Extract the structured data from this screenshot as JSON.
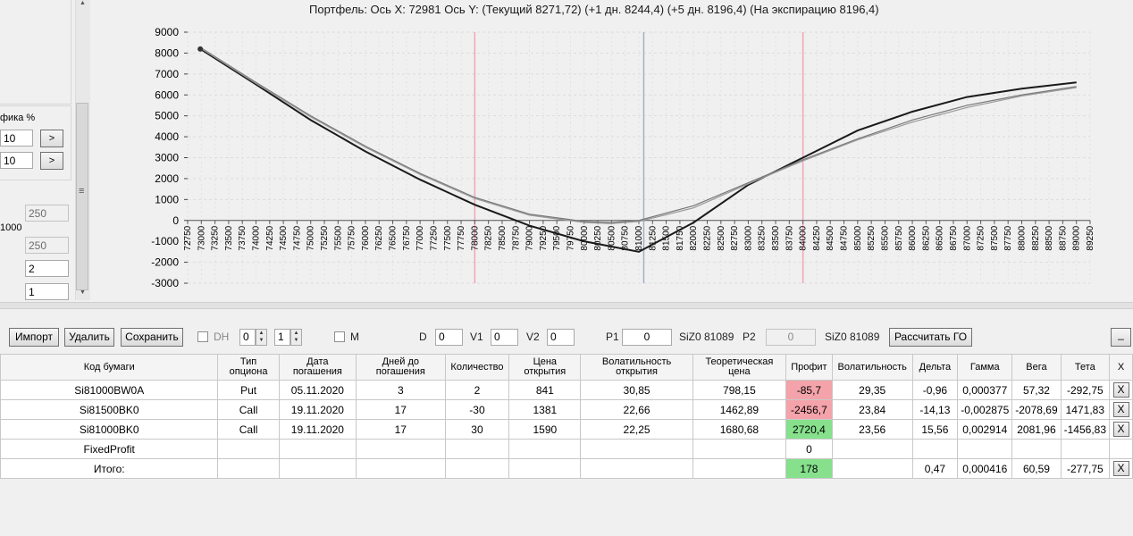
{
  "left_panel": {
    "label_percent": "фика %",
    "field1": "10",
    "field2": "10",
    "arrow": ">",
    "label_1000": "1000",
    "field_250_disabled": "250",
    "field_250": "250",
    "field_2": "2",
    "field_1": "1",
    "scroll_icon": "≡"
  },
  "chart_title": "Портфель: Ось X: 72981 Ось Y:  (Текущий 8271,72)  (+1 дн. 8244,4)  (+5 дн. 8196,4)  (На экспирацию 8196,4)",
  "toolbar": {
    "import": "Импорт",
    "delete": "Удалить",
    "save": "Сохранить",
    "dh_label": "DH",
    "spin1": "0",
    "spin2": "1",
    "m_label": "M",
    "d_label": "D",
    "d_value": "0",
    "v1_label": "V1",
    "v1_value": "0",
    "v2_label": "V2",
    "v2_value": "0",
    "p1_label": "P1",
    "p1_value": "0",
    "siz1": "SiZ0 81089",
    "p2_label": "P2",
    "p2_value": "0",
    "siz2": "SiZ0 81089",
    "calc_go": "Рассчитать ГО",
    "minimize": "_"
  },
  "table": {
    "headers": [
      "Код бумаги",
      "Тип опциона",
      "Дата погашения",
      "Дней до погашения",
      "Количество",
      "Цена открытия",
      "Волатильность открытия",
      "Теоретическая цена",
      "Профит",
      "Волатильность",
      "Дельта",
      "Гамма",
      "Вега",
      "Тета",
      "X"
    ],
    "rows": [
      [
        "Si81000BW0A",
        "Put",
        "05.11.2020",
        "3",
        "2",
        "841",
        "30,85",
        "798,15",
        "-85,7",
        "29,35",
        "-0,96",
        "0,000377",
        "57,32",
        "-292,75",
        "X"
      ],
      [
        "Si81500BK0",
        "Call",
        "19.11.2020",
        "17",
        "-30",
        "1381",
        "22,66",
        "1462,89",
        "-2456,7",
        "23,84",
        "-14,13",
        "-0,002875",
        "-2078,69",
        "1471,83",
        "X"
      ],
      [
        "Si81000BK0",
        "Call",
        "19.11.2020",
        "17",
        "30",
        "1590",
        "22,25",
        "1680,68",
        "2720,4",
        "23,56",
        "15,56",
        "0,002914",
        "2081,96",
        "-1456,83",
        "X"
      ],
      [
        "FixedProfit",
        "",
        "",
        "",
        "",
        "",
        "",
        "",
        "0",
        "",
        "",
        "",
        "",
        "",
        ""
      ],
      [
        "Итого:",
        "",
        "",
        "",
        "",
        "",
        "",
        "",
        "178",
        "",
        "0,47",
        "0,000416",
        "60,59",
        "-277,75",
        "X"
      ]
    ],
    "profit_colors": [
      "#f4a3aa",
      "#f4a3aa",
      "#86e08c",
      "#ffffff",
      "#86e08c"
    ]
  },
  "chart_data": {
    "type": "line",
    "title": "Портфель: Ось X: 72981 Ось Y:  (Текущий 8271,72)  (+1 дн. 8244,4)  (+5 дн. 8196,4)  (На экспирацию 8196,4)",
    "xlabel": "",
    "ylabel": "",
    "xlim": [
      72750,
      89250
    ],
    "ylim": [
      -3000,
      9000
    ],
    "y_ticks": [
      -3000,
      -2000,
      -1000,
      0,
      1000,
      2000,
      3000,
      4000,
      5000,
      6000,
      7000,
      8000,
      9000
    ],
    "x_tick_step": 250,
    "grid": true,
    "vertical_lines": [
      {
        "x": 78000,
        "color": "#f4a3b4"
      },
      {
        "x": 81089,
        "color": "#9fb0c4"
      },
      {
        "x": 84000,
        "color": "#f4a3b4"
      }
    ],
    "series": [
      {
        "color": "#1a1a1a",
        "x": [
          72981,
          74000,
          75000,
          76000,
          77000,
          78000,
          79000,
          80000,
          80500,
          81000,
          82000,
          83000,
          84000,
          85000,
          86000,
          87000,
          88000,
          89000
        ],
        "y": [
          8196,
          6500,
          4800,
          3300,
          1950,
          750,
          -250,
          -1000,
          -1250,
          -1500,
          -100,
          1700,
          3000,
          4300,
          5200,
          5900,
          6300,
          6600
        ]
      },
      {
        "color": "#777777",
        "x": [
          72981,
          74000,
          75000,
          76000,
          77000,
          78000,
          79000,
          80000,
          80500,
          81000,
          82000,
          83000,
          84000,
          85000,
          86000,
          87000,
          88000,
          89000
        ],
        "y": [
          8271,
          6600,
          5000,
          3550,
          2250,
          1100,
          300,
          -50,
          -100,
          0,
          700,
          1800,
          2900,
          3900,
          4800,
          5500,
          6000,
          6400
        ]
      },
      {
        "color": "#999999",
        "x": [
          72981,
          74000,
          75000,
          76000,
          77000,
          78000,
          79000,
          80000,
          80500,
          81000,
          82000,
          83000,
          84000,
          85000,
          86000,
          87000,
          88000,
          89000
        ],
        "y": [
          8244,
          6550,
          4950,
          3500,
          2200,
          1050,
          250,
          -100,
          -150,
          -50,
          600,
          1750,
          2850,
          3850,
          4700,
          5400,
          5950,
          6350
        ]
      }
    ]
  }
}
